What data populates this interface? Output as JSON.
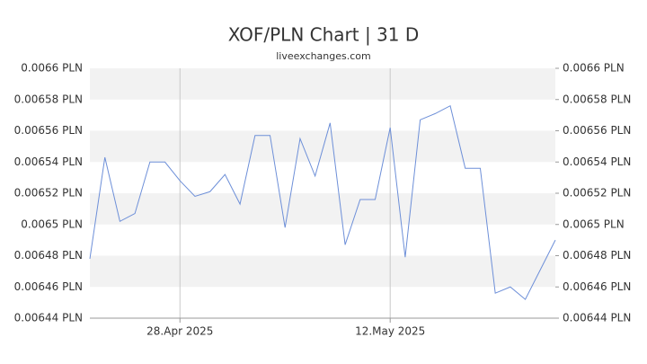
{
  "chart_data": {
    "type": "line",
    "title": "XOF/PLN Chart | 31 D",
    "subtitle": "liveexchanges.com",
    "x": [
      "2025-04-22",
      "2025-04-23",
      "2025-04-24",
      "2025-04-25",
      "2025-04-26",
      "2025-04-27",
      "2025-04-28",
      "2025-04-29",
      "2025-04-30",
      "2025-05-01",
      "2025-05-02",
      "2025-05-03",
      "2025-05-04",
      "2025-05-05",
      "2025-05-06",
      "2025-05-07",
      "2025-05-08",
      "2025-05-09",
      "2025-05-10",
      "2025-05-11",
      "2025-05-12",
      "2025-05-13",
      "2025-05-14",
      "2025-05-15",
      "2025-05-16",
      "2025-05-17",
      "2025-05-18",
      "2025-05-19",
      "2025-05-20",
      "2025-05-21",
      "2025-05-22",
      "2025-05-23"
    ],
    "series": [
      {
        "name": "XOF/PLN",
        "color": "#6d8fd8",
        "values": [
          0.006478,
          0.006543,
          0.006502,
          0.006507,
          0.00654,
          0.00654,
          0.006528,
          0.006518,
          0.006521,
          0.006532,
          0.006513,
          0.006557,
          0.006557,
          0.006498,
          0.006555,
          0.006531,
          0.006565,
          0.006487,
          0.006516,
          0.006516,
          0.006562,
          0.006479,
          0.006567,
          0.006571,
          0.006576,
          0.006536,
          0.006536,
          0.006456,
          0.00646,
          0.006452,
          0.006471,
          0.00649
        ]
      }
    ],
    "xlim": [
      "2025-04-22",
      "2025-05-23"
    ],
    "xticks": [
      {
        "value": "2025-04-28",
        "label": "28.Apr 2025"
      },
      {
        "value": "2025-05-12",
        "label": "12.May 2025"
      }
    ],
    "ylim": [
      0.00644,
      0.0066
    ],
    "yticks": [
      {
        "value": 0.00644,
        "label": "0.00644 PLN"
      },
      {
        "value": 0.00646,
        "label": "0.00646 PLN"
      },
      {
        "value": 0.00648,
        "label": "0.00648 PLN"
      },
      {
        "value": 0.0065,
        "label": "0.0065 PLN"
      },
      {
        "value": 0.00652,
        "label": "0.00652 PLN"
      },
      {
        "value": 0.00654,
        "label": "0.00654 PLN"
      },
      {
        "value": 0.00656,
        "label": "0.00656 PLN"
      },
      {
        "value": 0.00658,
        "label": "0.00658 PLN"
      },
      {
        "value": 0.0066,
        "label": "0.0066 PLN"
      }
    ],
    "grid": true
  }
}
